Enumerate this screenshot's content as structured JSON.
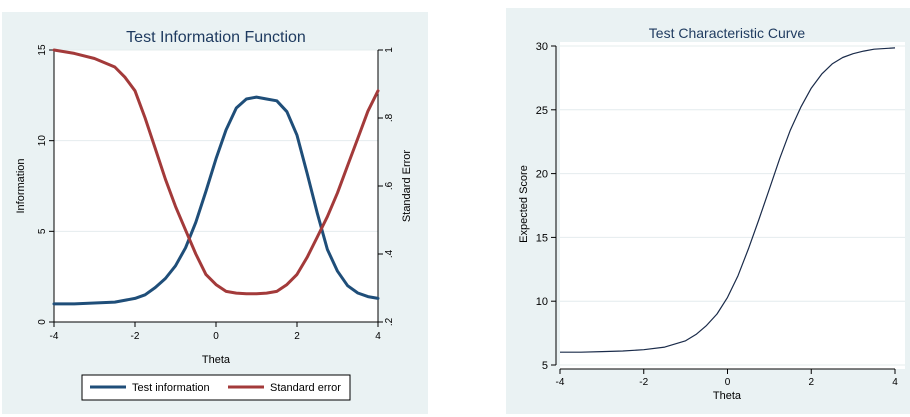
{
  "chart_data": [
    {
      "type": "line",
      "title": "Test Information Function",
      "xlabel": "Theta",
      "ylabel": "Information",
      "y2label": "Standard Error",
      "xlim": [
        -4,
        4
      ],
      "ylim": [
        0,
        15
      ],
      "y2lim": [
        0.2,
        1.0
      ],
      "x_ticks": [
        "-4",
        "-2",
        "0",
        "2",
        "4"
      ],
      "y_ticks": [
        "0",
        "5",
        "10",
        "15"
      ],
      "y2_ticks": [
        ".2",
        ".4",
        ".6",
        ".8",
        "1"
      ],
      "grid": true,
      "legend_position": "bottom",
      "series": [
        {
          "name": "Test information",
          "axis": "left",
          "color": "#1f4e79",
          "x": [
            -4.0,
            -3.5,
            -3.0,
            -2.5,
            -2.0,
            -1.75,
            -1.5,
            -1.25,
            -1.0,
            -0.75,
            -0.5,
            -0.25,
            0.0,
            0.25,
            0.5,
            0.75,
            1.0,
            1.25,
            1.5,
            1.75,
            2.0,
            2.25,
            2.5,
            2.75,
            3.0,
            3.25,
            3.5,
            3.75,
            4.0
          ],
          "values": [
            1.0,
            1.0,
            1.05,
            1.1,
            1.3,
            1.5,
            1.9,
            2.4,
            3.1,
            4.1,
            5.5,
            7.2,
            9.0,
            10.6,
            11.8,
            12.3,
            12.4,
            12.3,
            12.2,
            11.6,
            10.3,
            8.2,
            6.0,
            4.0,
            2.8,
            2.0,
            1.6,
            1.4,
            1.3
          ]
        },
        {
          "name": "Standard error",
          "axis": "right",
          "color": "#a33a3a",
          "x": [
            -4.0,
            -3.5,
            -3.0,
            -2.5,
            -2.25,
            -2.0,
            -1.75,
            -1.5,
            -1.25,
            -1.0,
            -0.75,
            -0.5,
            -0.25,
            0.0,
            0.25,
            0.5,
            0.75,
            1.0,
            1.25,
            1.5,
            1.75,
            2.0,
            2.25,
            2.5,
            2.75,
            3.0,
            3.25,
            3.5,
            3.75,
            4.0
          ],
          "values": [
            1.0,
            0.99,
            0.975,
            0.95,
            0.92,
            0.88,
            0.8,
            0.71,
            0.62,
            0.54,
            0.47,
            0.4,
            0.34,
            0.31,
            0.29,
            0.285,
            0.283,
            0.283,
            0.285,
            0.29,
            0.31,
            0.34,
            0.39,
            0.45,
            0.51,
            0.58,
            0.66,
            0.74,
            0.82,
            0.88
          ]
        }
      ]
    },
    {
      "type": "line",
      "title": "Test Characteristic Curve",
      "xlabel": "Theta",
      "ylabel": "Expected Score",
      "xlim": [
        -4,
        4
      ],
      "ylim": [
        5,
        30
      ],
      "x_ticks": [
        "-4",
        "-2",
        "0",
        "2",
        "4"
      ],
      "y_ticks": [
        "5",
        "10",
        "15",
        "20",
        "25",
        "30"
      ],
      "grid": true,
      "series": [
        {
          "color": "#1a2b4a",
          "x": [
            -4.0,
            -3.5,
            -3.0,
            -2.5,
            -2.0,
            -1.5,
            -1.0,
            -0.75,
            -0.5,
            -0.25,
            0.0,
            0.25,
            0.5,
            0.75,
            1.0,
            1.25,
            1.5,
            1.75,
            2.0,
            2.25,
            2.5,
            2.75,
            3.0,
            3.25,
            3.5,
            4.0
          ],
          "values": [
            6.0,
            6.0,
            6.05,
            6.1,
            6.2,
            6.4,
            6.9,
            7.4,
            8.1,
            9.0,
            10.3,
            12.0,
            14.1,
            16.4,
            18.8,
            21.2,
            23.4,
            25.2,
            26.7,
            27.8,
            28.6,
            29.1,
            29.4,
            29.6,
            29.75,
            29.85
          ]
        }
      ]
    }
  ]
}
